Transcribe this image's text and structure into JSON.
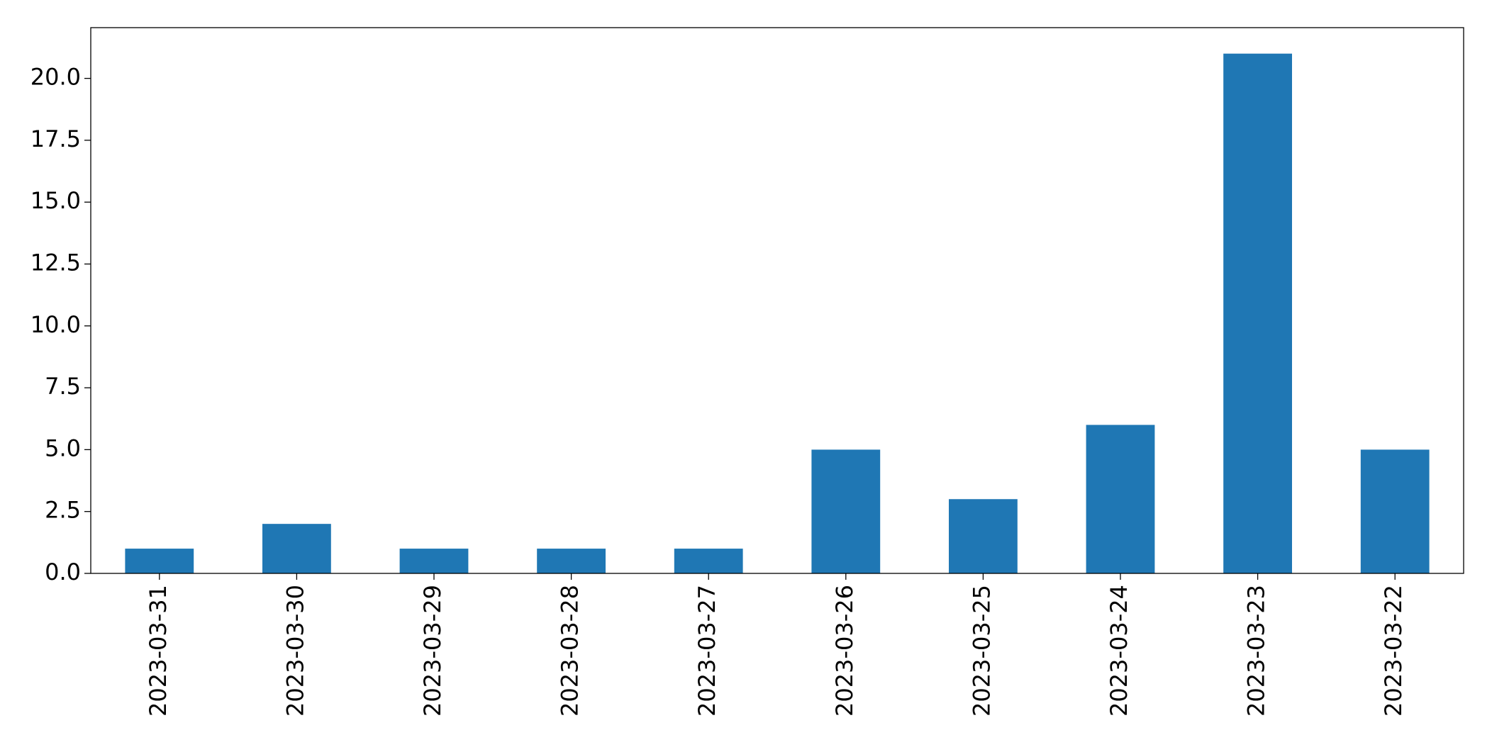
{
  "chart_data": {
    "type": "bar",
    "categories": [
      "2023-03-31",
      "2023-03-30",
      "2023-03-29",
      "2023-03-28",
      "2023-03-27",
      "2023-03-26",
      "2023-03-25",
      "2023-03-24",
      "2023-03-23",
      "2023-03-22"
    ],
    "values": [
      1,
      2,
      1,
      1,
      1,
      5,
      3,
      6,
      21,
      5
    ],
    "color": "#1f77b4",
    "ylim": [
      0,
      22.05
    ],
    "yticks": [
      {
        "value": 0,
        "label": "0.0"
      },
      {
        "value": 2.5,
        "label": "2.5"
      },
      {
        "value": 5,
        "label": "5.0"
      },
      {
        "value": 7.5,
        "label": "7.5"
      },
      {
        "value": 10,
        "label": "10.0"
      },
      {
        "value": 12.5,
        "label": "12.5"
      },
      {
        "value": 15,
        "label": "15.0"
      },
      {
        "value": 17.5,
        "label": "17.5"
      },
      {
        "value": 20,
        "label": "20.0"
      }
    ],
    "grid": false
  }
}
